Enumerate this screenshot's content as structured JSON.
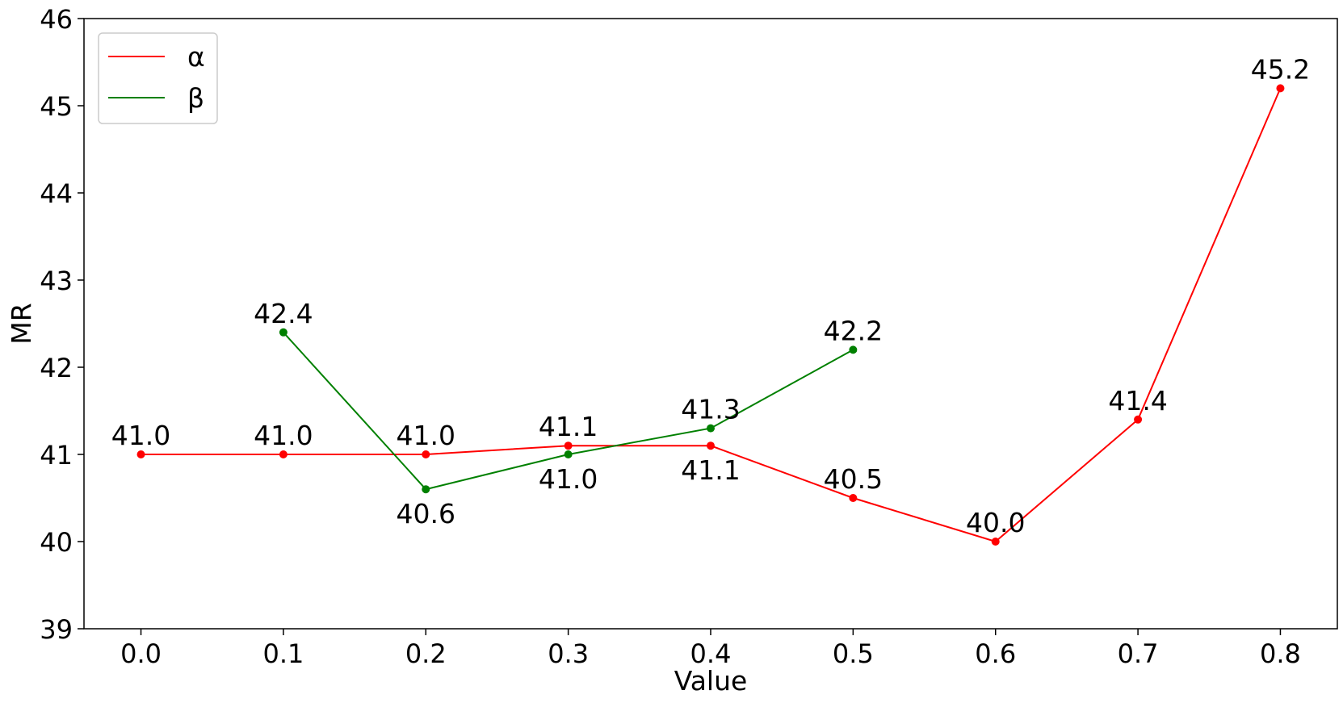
{
  "chart_data": {
    "type": "line",
    "title": "",
    "xlabel": "Value",
    "ylabel": "MR",
    "xlim": [
      -0.04,
      0.84
    ],
    "ylim": [
      39,
      46
    ],
    "x_ticks": [
      0.0,
      0.1,
      0.2,
      0.3,
      0.4,
      0.5,
      0.6,
      0.7,
      0.8
    ],
    "x_tick_labels": [
      "0.0",
      "0.1",
      "0.2",
      "0.3",
      "0.4",
      "0.5",
      "0.6",
      "0.7",
      "0.8"
    ],
    "y_ticks": [
      39,
      40,
      41,
      42,
      43,
      44,
      45,
      46
    ],
    "y_tick_labels": [
      "39",
      "40",
      "41",
      "42",
      "43",
      "44",
      "45",
      "46"
    ],
    "grid": false,
    "legend_position": "top-left",
    "series": [
      {
        "name": "α",
        "color": "#ff0000",
        "x": [
          0.0,
          0.1,
          0.2,
          0.3,
          0.4,
          0.5,
          0.6,
          0.7,
          0.8
        ],
        "values": [
          41.0,
          41.0,
          41.0,
          41.1,
          41.1,
          40.5,
          40.0,
          41.4,
          45.2
        ],
        "labels": [
          "41.0",
          "41.0",
          "41.0",
          "41.1",
          "41.1",
          "40.5",
          "40.0",
          "41.4",
          "45.2"
        ],
        "label_positions": [
          "above",
          "above",
          "above",
          "above",
          "below",
          "above",
          "above",
          "above",
          "above"
        ]
      },
      {
        "name": "β",
        "color": "#008000",
        "x": [
          0.1,
          0.2,
          0.3,
          0.4,
          0.5
        ],
        "values": [
          42.4,
          40.6,
          41.0,
          41.3,
          42.2
        ],
        "labels": [
          "42.4",
          "40.6",
          "41.0",
          "41.3",
          "42.2"
        ],
        "label_positions": [
          "above",
          "below",
          "below",
          "above",
          "above"
        ]
      }
    ]
  }
}
